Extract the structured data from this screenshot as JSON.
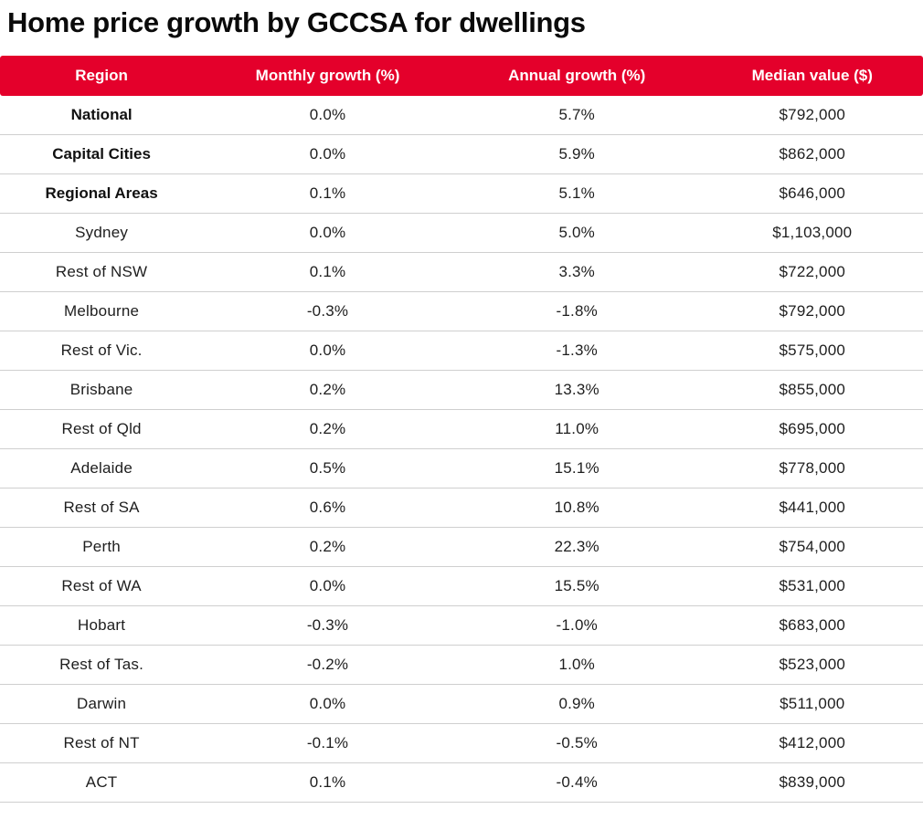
{
  "page": {
    "title": "Home price growth by GCCSA for dwellings"
  },
  "colors": {
    "header_bg": "#e4002b",
    "header_text": "#ffffff",
    "title_text": "#0a0a0a",
    "cell_text": "#1e1e1e",
    "row_divider": "#cfcfcf",
    "background": "#ffffff"
  },
  "chart_data": {
    "type": "table",
    "title": "Home price growth by GCCSA for dwellings",
    "columns": [
      "Region",
      "Monthly growth (%)",
      "Annual growth (%)",
      "Median value ($)"
    ],
    "bold_row_count": 3,
    "rows": [
      {
        "region": "National",
        "monthly": "0.0%",
        "annual": "5.7%",
        "median": "$792,000"
      },
      {
        "region": "Capital Cities",
        "monthly": "0.0%",
        "annual": "5.9%",
        "median": "$862,000"
      },
      {
        "region": "Regional Areas",
        "monthly": "0.1%",
        "annual": "5.1%",
        "median": "$646,000"
      },
      {
        "region": "Sydney",
        "monthly": "0.0%",
        "annual": "5.0%",
        "median": "$1,103,000"
      },
      {
        "region": "Rest of NSW",
        "monthly": "0.1%",
        "annual": "3.3%",
        "median": "$722,000"
      },
      {
        "region": "Melbourne",
        "monthly": "-0.3%",
        "annual": "-1.8%",
        "median": "$792,000"
      },
      {
        "region": "Rest of Vic.",
        "monthly": "0.0%",
        "annual": "-1.3%",
        "median": "$575,000"
      },
      {
        "region": "Brisbane",
        "monthly": "0.2%",
        "annual": "13.3%",
        "median": "$855,000"
      },
      {
        "region": "Rest of Qld",
        "monthly": "0.2%",
        "annual": "11.0%",
        "median": "$695,000"
      },
      {
        "region": "Adelaide",
        "monthly": "0.5%",
        "annual": "15.1%",
        "median": "$778,000"
      },
      {
        "region": "Rest of SA",
        "monthly": "0.6%",
        "annual": "10.8%",
        "median": "$441,000"
      },
      {
        "region": "Perth",
        "monthly": "0.2%",
        "annual": "22.3%",
        "median": "$754,000"
      },
      {
        "region": "Rest of WA",
        "monthly": "0.0%",
        "annual": "15.5%",
        "median": "$531,000"
      },
      {
        "region": "Hobart",
        "monthly": "-0.3%",
        "annual": "-1.0%",
        "median": "$683,000"
      },
      {
        "region": "Rest of Tas.",
        "monthly": "-0.2%",
        "annual": "1.0%",
        "median": "$523,000"
      },
      {
        "region": "Darwin",
        "monthly": "0.0%",
        "annual": "0.9%",
        "median": "$511,000"
      },
      {
        "region": "Rest of NT",
        "monthly": "-0.1%",
        "annual": "-0.5%",
        "median": "$412,000"
      },
      {
        "region": "ACT",
        "monthly": "0.1%",
        "annual": "-0.4%",
        "median": "$839,000"
      }
    ]
  }
}
